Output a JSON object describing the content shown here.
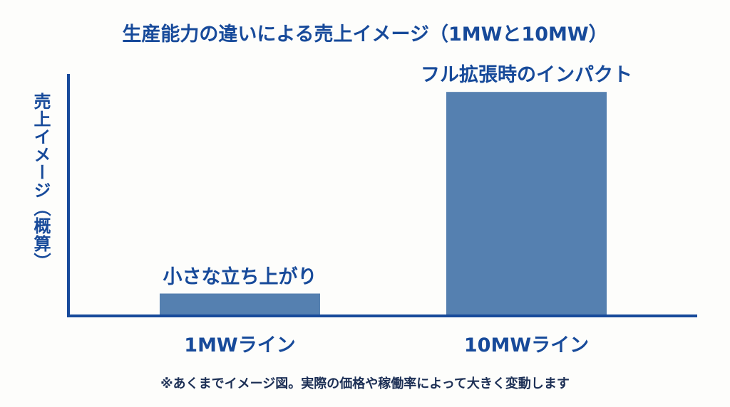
{
  "chart_data": {
    "type": "bar",
    "title": "生産能力の違いによる売上イメージ（1MWと10MW）",
    "xlabel": "",
    "ylabel": "売上イメージ（概算）",
    "categories": [
      "1MWライン",
      "10MWライン"
    ],
    "values": [
      1,
      10
    ],
    "ylim": [
      0,
      10.8
    ],
    "annotations": [
      "小さな立ち上がり",
      "フル拡張時のインパクト"
    ],
    "grid": false,
    "y_ticks": false,
    "colors": {
      "bar": "#5580b0",
      "axis": "#174a9a",
      "text": "#174a9a"
    },
    "footnote": "※あくまでイメージ図。実際の価格や稼働率によって大きく変動します"
  }
}
